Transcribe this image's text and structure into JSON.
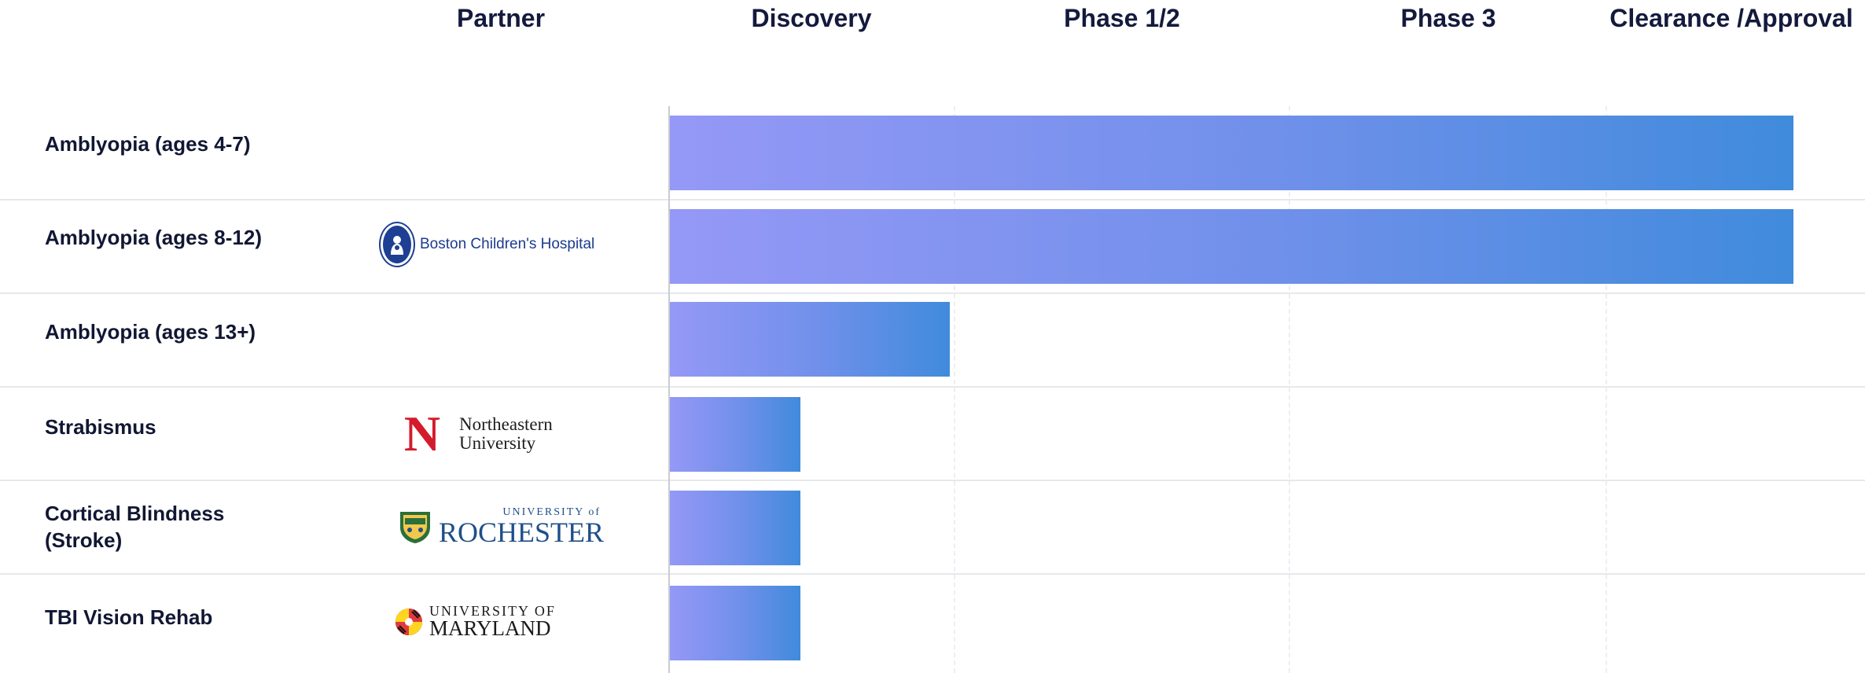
{
  "headers": {
    "partner": "Partner",
    "discovery": "Discovery",
    "phase12": "Phase 1/2",
    "phase3": "Phase 3",
    "clearance": "Clearance /Approval"
  },
  "stages": [
    "Discovery",
    "Phase 1/2",
    "Phase 3",
    "Clearance /Approval"
  ],
  "rows": [
    {
      "label": "Amblyopia (ages 4-7)",
      "partner": "",
      "progress": 0.94
    },
    {
      "label": "Amblyopia (ages 8-12)",
      "partner": "Boston Children's Hospital",
      "progress": 0.94
    },
    {
      "label": "Amblyopia (ages 13+)",
      "partner": "",
      "progress": 0.235
    },
    {
      "label": "Strabismus",
      "partner": "Northeastern University",
      "partner_lines": [
        "Northeastern",
        "University"
      ],
      "progress": 0.11
    },
    {
      "label": "Cortical Blindness (Stroke)",
      "label_lines": [
        "Cortical Blindness",
        "(Stroke)"
      ],
      "partner": "University of Rochester",
      "partner_lines": [
        "UNIVERSITY of",
        "ROCHESTER"
      ],
      "progress": 0.11
    },
    {
      "label": "TBI Vision Rehab",
      "partner": "University of Maryland",
      "partner_lines": [
        "UNIVERSITY OF",
        "MARYLAND"
      ],
      "progress": 0.11
    }
  ],
  "colors": {
    "bar_start": "#9598f6",
    "bar_end": "#408bdc",
    "text": "#111733",
    "bch_blue": "#1b3b8f",
    "neu_red": "#d41b2c",
    "roc_blue": "#1f4f8a"
  },
  "icons": {
    "bch": "boston-childrens-emblem-icon",
    "neu": "northeastern-n-logo-icon",
    "roc": "rochester-seal-icon",
    "umd": "maryland-flag-seal-icon"
  }
}
